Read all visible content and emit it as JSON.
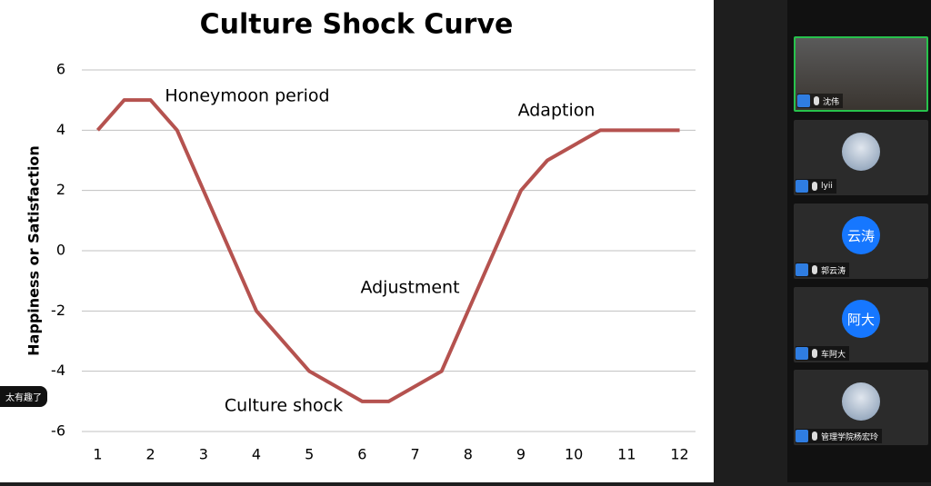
{
  "chart_data": {
    "type": "line",
    "title": "Culture Shock Curve",
    "y_label": "Happiness or Satisfaction",
    "x": [
      1,
      1.5,
      2,
      2.5,
      4,
      5,
      6,
      6.5,
      7.5,
      9,
      9.5,
      10.5,
      12
    ],
    "values": [
      4,
      5,
      5,
      4,
      -2,
      -4,
      -5,
      -5,
      -4,
      2,
      3,
      4,
      4
    ],
    "color": "#b5524f",
    "xlim": [
      0.7,
      12.3
    ],
    "xticks": [
      1,
      2,
      3,
      4,
      5,
      6,
      7,
      8,
      9,
      10,
      11,
      12
    ],
    "ylim": [
      -6,
      6
    ],
    "yticks": [
      -6,
      -4,
      -2,
      0,
      2,
      4,
      6
    ],
    "grid": true,
    "annotations": [
      "Honeymoon period",
      "Adaption",
      "Adjustment",
      "Culture shock"
    ]
  },
  "participants": [
    {
      "name": "沈伟"
    },
    {
      "name": "lyii"
    },
    {
      "avatar": "云涛",
      "name": "郭云涛"
    },
    {
      "avatar": "阿大",
      "name": "车阿大"
    },
    {
      "name": "管理学院杨宏玲"
    }
  ],
  "chat": "太有趣了"
}
